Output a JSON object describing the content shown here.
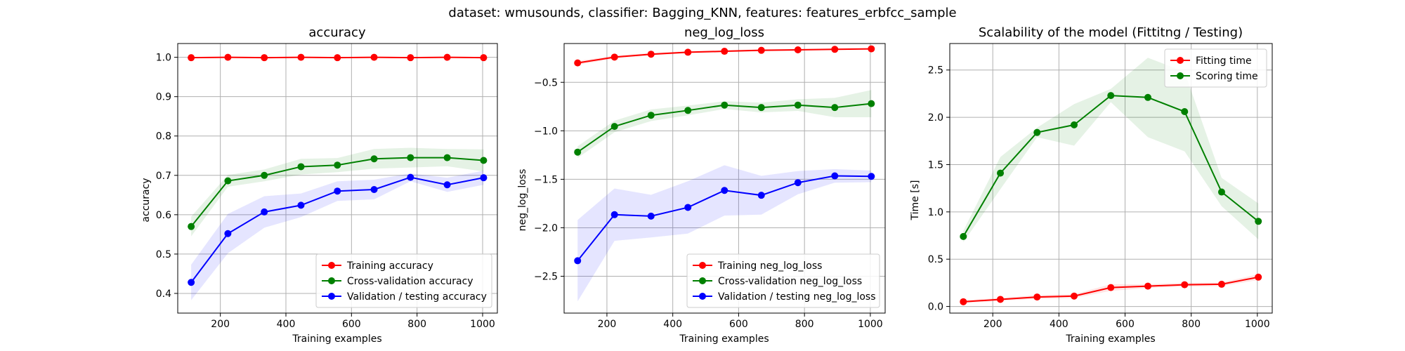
{
  "figure": {
    "suptitle": "dataset: wmusounds, classifier: Bagging_KNN, features: features_erbfcc_sample"
  },
  "chart_data": [
    {
      "type": "line",
      "title": "accuracy",
      "xlabel": "Training examples",
      "ylabel": "accuracy",
      "xlim": [
        70,
        1045
      ],
      "ylim": [
        0.35,
        1.035
      ],
      "xticks": [
        200,
        400,
        600,
        800,
        1000
      ],
      "xtick_labels": [
        "200",
        "400",
        "600",
        "800",
        "1000"
      ],
      "yticks": [
        0.4,
        0.5,
        0.6,
        0.7,
        0.8,
        0.9,
        1.0
      ],
      "ytick_labels": [
        "0.4",
        "0.5",
        "0.6",
        "0.7",
        "0.8",
        "0.9",
        "1.0"
      ],
      "grid": true,
      "legend_position": "lower-right",
      "x": [
        111,
        223,
        334,
        446,
        557,
        669,
        780,
        892,
        1003
      ],
      "series": [
        {
          "name": "Training accuracy",
          "color": "#ff0000",
          "values": [
            0.999,
            1.0,
            0.999,
            1.0,
            0.999,
            1.0,
            0.999,
            1.0,
            0.999
          ],
          "band": [
            0.001,
            0.001,
            0.001,
            0.001,
            0.001,
            0.001,
            0.001,
            0.001,
            0.001
          ]
        },
        {
          "name": "Cross-validation accuracy",
          "color": "#008000",
          "values": [
            0.57,
            0.686,
            0.7,
            0.722,
            0.726,
            0.742,
            0.745,
            0.745,
            0.738
          ],
          "band": [
            0.025,
            0.015,
            0.015,
            0.02,
            0.018,
            0.025,
            0.025,
            0.022,
            0.028
          ]
        },
        {
          "name": "Validation / testing accuracy",
          "color": "#0000ff",
          "values": [
            0.428,
            0.552,
            0.607,
            0.624,
            0.66,
            0.664,
            0.695,
            0.676,
            0.694
          ],
          "band": [
            0.045,
            0.05,
            0.04,
            0.03,
            0.025,
            0.025,
            0.01,
            0.018,
            0.018
          ]
        }
      ]
    },
    {
      "type": "line",
      "title": "neg_log_loss",
      "xlabel": "Training examples",
      "ylabel": "neg_log_loss",
      "xlim": [
        70,
        1045
      ],
      "ylim": [
        -2.88,
        -0.1
      ],
      "xticks": [
        200,
        400,
        600,
        800,
        1000
      ],
      "xtick_labels": [
        "200",
        "400",
        "600",
        "800",
        "1000"
      ],
      "yticks": [
        -2.5,
        -2.0,
        -1.5,
        -1.0,
        -0.5
      ],
      "ytick_labels": [
        "−2.5",
        "−2.0",
        "−1.5",
        "−1.0",
        "−0.5"
      ],
      "grid": true,
      "legend_position": "lower-right",
      "x": [
        111,
        223,
        334,
        446,
        557,
        669,
        780,
        892,
        1003
      ],
      "series": [
        {
          "name": "Training neg_log_loss",
          "color": "#ff0000",
          "values": [
            -0.3,
            -0.24,
            -0.21,
            -0.19,
            -0.18,
            -0.17,
            -0.165,
            -0.16,
            -0.155
          ],
          "band": [
            0.02,
            0.015,
            0.012,
            0.01,
            0.01,
            0.01,
            0.008,
            0.008,
            0.008
          ]
        },
        {
          "name": "Cross-validation neg_log_loss",
          "color": "#008000",
          "values": [
            -1.22,
            -0.955,
            -0.84,
            -0.79,
            -0.735,
            -0.76,
            -0.735,
            -0.76,
            -0.72
          ],
          "band": [
            0.06,
            0.06,
            0.06,
            0.05,
            0.04,
            0.05,
            0.06,
            0.1,
            0.14
          ]
        },
        {
          "name": "Validation / testing neg_log_loss",
          "color": "#0000ff",
          "values": [
            -2.34,
            -1.865,
            -1.88,
            -1.79,
            -1.615,
            -1.665,
            -1.535,
            -1.465,
            -1.47
          ],
          "band": [
            0.42,
            0.27,
            0.22,
            0.27,
            0.26,
            0.2,
            0.12,
            0.07,
            0.06
          ]
        }
      ]
    },
    {
      "type": "line",
      "title": "Scalability of the model (Fittitng / Testing)",
      "xlabel": "Training examples",
      "ylabel": "Time [s]",
      "xlim": [
        70,
        1045
      ],
      "ylim": [
        -0.07,
        2.78
      ],
      "xticks": [
        200,
        400,
        600,
        800,
        1000
      ],
      "xtick_labels": [
        "200",
        "400",
        "600",
        "800",
        "1000"
      ],
      "yticks": [
        0.0,
        0.5,
        1.0,
        1.5,
        2.0,
        2.5
      ],
      "ytick_labels": [
        "0.0",
        "0.5",
        "1.0",
        "1.5",
        "2.0",
        "2.5"
      ],
      "grid": true,
      "legend_position": "upper-right",
      "x": [
        111,
        223,
        334,
        446,
        557,
        669,
        780,
        892,
        1003
      ],
      "series": [
        {
          "name": "Fitting time",
          "color": "#ff0000",
          "values": [
            0.05,
            0.075,
            0.1,
            0.11,
            0.2,
            0.215,
            0.23,
            0.235,
            0.31
          ],
          "band": [
            0.015,
            0.015,
            0.02,
            0.02,
            0.035,
            0.02,
            0.02,
            0.02,
            0.03
          ]
        },
        {
          "name": "Scoring time",
          "color": "#008000",
          "values": [
            0.74,
            1.41,
            1.84,
            1.92,
            2.23,
            2.21,
            2.06,
            1.21,
            0.9
          ],
          "band": [
            0.06,
            0.17,
            0.05,
            0.22,
            0.07,
            0.42,
            0.42,
            0.15,
            0.19
          ]
        }
      ]
    }
  ]
}
